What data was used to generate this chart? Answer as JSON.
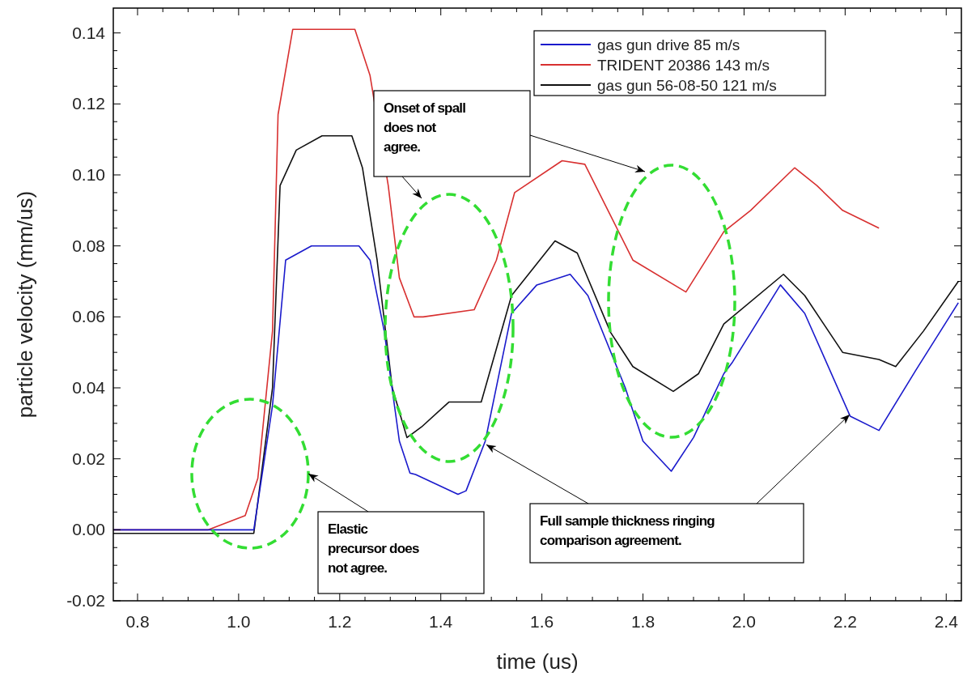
{
  "chart_data": {
    "type": "line",
    "xlabel": "time (us)",
    "ylabel": "particle velocity (mm/us)",
    "xlim": [
      0.752,
      2.43
    ],
    "ylim": [
      -0.02,
      0.147
    ],
    "xticks": [
      0.8,
      {
        "value": 1,
        "label": "1.0"
      },
      1.2,
      1.4,
      1.6,
      1.8,
      {
        "value": 2,
        "label": "2.0"
      },
      2.2,
      2.4
    ],
    "yticks": [
      -0.02,
      {
        "value": 0,
        "label": "0.00"
      },
      0.02,
      0.04,
      0.06,
      0.08,
      {
        "value": 0.1,
        "label": "0.10"
      },
      0.12,
      0.14
    ],
    "legend": "top right",
    "grid": false,
    "line_style": "solid",
    "marker": "none",
    "annotations": [
      "Onset of spall does not agree.",
      "Elastic precursor does not agree.",
      {
        "text": "Full sample thickness ringing comparison agreement.",
        "x": 1.49,
        "y": 0.024
      }
    ],
    "series": [
      {
        "name": "gas gun drive 85 m/s",
        "color": "#1a1acc",
        "x": [
          0.752,
          0.85,
          0.95,
          1.03,
          1.067,
          1.093,
          1.144,
          1.238,
          1.26,
          1.288,
          1.318,
          1.339,
          1.35,
          1.434,
          1.45,
          1.488,
          1.54,
          1.59,
          1.656,
          1.691,
          1.765,
          1.8,
          1.856,
          1.9,
          1.96,
          1.976,
          2.072,
          2.12,
          2.21,
          2.267,
          2.34,
          2.424
        ],
        "values": [
          0,
          0,
          0,
          0,
          0.035,
          0.076,
          0.08,
          0.08,
          0.076,
          0.056,
          0.025,
          0.016,
          0.0156,
          0.01,
          0.011,
          0.025,
          0.061,
          0.069,
          0.072,
          0.066,
          0.04,
          0.025,
          0.0165,
          0.026,
          0.044,
          0.047,
          0.069,
          0.061,
          0.032,
          0.028,
          0.045,
          0.064
        ]
      },
      {
        "name": "TRIDENT 20386 143 m/s",
        "color": "#d83030",
        "x": [
          0.752,
          0.94,
          1.013,
          1.038,
          1.067,
          1.078,
          1.107,
          1.23,
          1.26,
          1.296,
          1.318,
          1.347,
          1.365,
          1.466,
          1.51,
          1.546,
          1.64,
          1.685,
          1.736,
          1.78,
          1.885,
          1.96,
          2.013,
          2.1,
          2.144,
          2.195,
          2.267
        ],
        "values": [
          0,
          0,
          0.004,
          0.0145,
          0.056,
          0.117,
          0.141,
          0.141,
          0.128,
          0.097,
          0.071,
          0.06,
          0.06,
          0.062,
          0.076,
          0.095,
          0.104,
          0.103,
          0.0885,
          0.076,
          0.067,
          0.084,
          0.09,
          0.102,
          0.097,
          0.09,
          0.085
        ]
      },
      {
        "name": "gas gun 56-08-50 121 m/s",
        "color": "#111111",
        "x": [
          0.752,
          0.85,
          0.95,
          1.03,
          1.067,
          1.082,
          1.114,
          1.165,
          1.224,
          1.245,
          1.274,
          1.304,
          1.333,
          1.362,
          1.416,
          1.48,
          1.54,
          1.626,
          1.67,
          1.736,
          1.78,
          1.86,
          1.91,
          1.96,
          2.078,
          2.12,
          2.195,
          2.267,
          2.3,
          2.355,
          2.424
        ],
        "values": [
          -0.001,
          -0.001,
          -0.001,
          -0.001,
          0.04,
          0.097,
          0.107,
          0.111,
          0.111,
          0.102,
          0.076,
          0.04,
          0.026,
          0.029,
          0.036,
          0.036,
          0.066,
          0.0814,
          0.078,
          0.0556,
          0.046,
          0.039,
          0.044,
          0.058,
          0.072,
          0.066,
          0.05,
          0.048,
          0.046,
          0.056,
          0.07
        ]
      }
    ]
  }
}
